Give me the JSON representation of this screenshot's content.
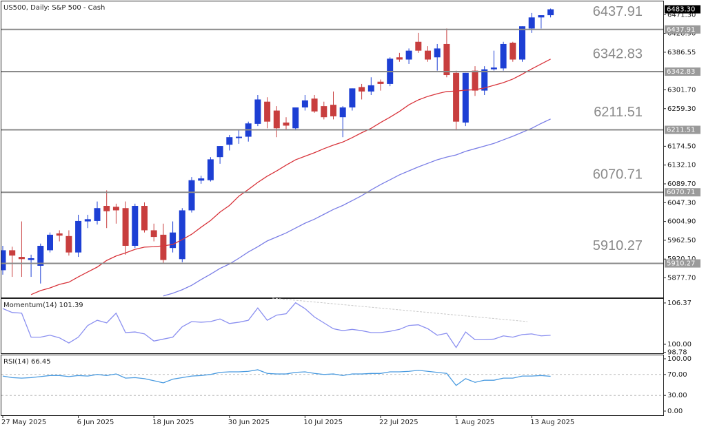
{
  "chart_data": [
    {
      "type": "candlestick",
      "title": "US500, Daily:  S&P 500 - Cash",
      "categories": [
        "27 May 2025",
        null,
        null,
        null,
        null,
        null,
        null,
        null,
        "6 Jun 2025",
        null,
        null,
        null,
        null,
        null,
        null,
        null,
        "18 Jun 2025",
        null,
        null,
        null,
        null,
        null,
        null,
        null,
        "30 Jun 2025",
        null,
        null,
        null,
        null,
        null,
        null,
        null,
        "10 Jul 2025",
        null,
        null,
        null,
        null,
        null,
        null,
        null,
        "22 Jul 2025",
        null,
        null,
        null,
        null,
        null,
        null,
        null,
        "1 Aug 2025",
        null,
        null,
        null,
        null,
        null,
        null,
        null,
        "13 Aug 2025",
        null,
        null
      ],
      "open": [
        5895,
        5940,
        5925,
        5918,
        5905,
        5940,
        5978,
        5972,
        5935,
        6005,
        6006,
        6040,
        6038,
        6035,
        5950,
        6040,
        5985,
        5975,
        5945,
        5920,
        6030,
        6097,
        6098,
        6150,
        6178,
        6193,
        6196,
        6225,
        6275,
        6255,
        6228,
        6215,
        6262,
        6282,
        6265,
        6268,
        6240,
        6262,
        6308,
        6298,
        6320,
        6315,
        6375,
        6370,
        6410,
        6390,
        6375,
        6405,
        6340,
        6228,
        6345,
        6300,
        6348,
        6350,
        6408,
        6370,
        6440,
        6465,
        6470
      ],
      "high": [
        5950,
        5948,
        6005,
        5930,
        5955,
        5980,
        5985,
        5985,
        6020,
        6020,
        6050,
        6075,
        6045,
        6050,
        6045,
        6048,
        6000,
        6000,
        6005,
        6035,
        6105,
        6108,
        6150,
        6175,
        6200,
        6210,
        6230,
        6290,
        6285,
        6265,
        6240,
        6260,
        6290,
        6290,
        6275,
        6298,
        6265,
        6305,
        6315,
        6330,
        6325,
        6375,
        6385,
        6395,
        6430,
        6400,
        6405,
        6440,
        6345,
        6340,
        6355,
        6355,
        6390,
        6410,
        6410,
        6445,
        6475,
        6470,
        6485
      ],
      "low": [
        5885,
        5880,
        5880,
        5880,
        5865,
        5935,
        5960,
        5928,
        5925,
        5990,
        5998,
        5990,
        6000,
        5930,
        5945,
        5980,
        5960,
        5910,
        5935,
        5913,
        6025,
        6090,
        6095,
        6135,
        6165,
        6180,
        6185,
        6220,
        6215,
        6195,
        6210,
        6210,
        6255,
        6250,
        6235,
        6235,
        6195,
        6255,
        6280,
        6290,
        6300,
        6310,
        6365,
        6360,
        6385,
        6365,
        6345,
        6330,
        6210,
        6220,
        6288,
        6290,
        6345,
        6345,
        6365,
        6365,
        6430,
        6440,
        6465
      ],
      "close": [
        5940,
        5928,
        5920,
        5922,
        5950,
        5975,
        5973,
        5935,
        6006,
        6010,
        6035,
        6028,
        6030,
        5950,
        6040,
        5985,
        5970,
        5918,
        5980,
        6030,
        6098,
        6102,
        6145,
        6175,
        6195,
        6196,
        6226,
        6280,
        6230,
        6215,
        6221,
        6262,
        6278,
        6253,
        6240,
        6242,
        6262,
        6305,
        6298,
        6312,
        6315,
        6372,
        6370,
        6390,
        6390,
        6370,
        6395,
        6335,
        6230,
        6340,
        6300,
        6348,
        6352,
        6405,
        6370,
        6445,
        6465,
        6470,
        6483.3
      ],
      "up_color": "#1d3fd4",
      "down_color": "#c83e3e",
      "overlays": [
        {
          "color": "#d8333a",
          "values": [
            null,
            null,
            null,
            5840,
            5849,
            5855,
            5863,
            5868,
            5880,
            5891,
            5902,
            5917,
            5927,
            5934,
            5942,
            5947,
            5948,
            5950,
            5953,
            5964,
            5976,
            5992,
            6007,
            6026,
            6041,
            6062,
            6077,
            6093,
            6107,
            6119,
            6132,
            6144,
            6152,
            6160,
            6169,
            6177,
            6184,
            6194,
            6205,
            6215,
            6228,
            6240,
            6253,
            6268,
            6279,
            6287,
            6293,
            6298,
            6299,
            6301,
            6302,
            6306,
            6312,
            6318,
            6326,
            6337,
            6349,
            6360,
            6371
          ]
        },
        {
          "color": "#7a7ee6",
          "values": [
            null,
            null,
            null,
            null,
            null,
            null,
            null,
            null,
            null,
            null,
            null,
            null,
            null,
            null,
            null,
            null,
            null,
            5837,
            5843,
            5851,
            5861,
            5874,
            5886,
            5899,
            5909,
            5922,
            5936,
            5948,
            5961,
            5970,
            5979,
            5990,
            6001,
            6010,
            6021,
            6032,
            6041,
            6052,
            6063,
            6076,
            6088,
            6099,
            6110,
            6119,
            6128,
            6136,
            6144,
            6150,
            6155,
            6163,
            6169,
            6175,
            6181,
            6189,
            6197,
            6206,
            6215,
            6226,
            6236
          ]
        }
      ],
      "levels": [
        {
          "value": 6437.91,
          "label": "6437.91"
        },
        {
          "value": 6342.83,
          "label": "6342.83"
        },
        {
          "value": 6211.51,
          "label": "6211.51"
        },
        {
          "value": 6070.71,
          "label": "6070.71"
        },
        {
          "value": 5910.27,
          "label": "5910.27"
        }
      ],
      "last_price": {
        "value": 6483.3,
        "label": "6483.30"
      },
      "ylim": [
        5833.5,
        6501.2
      ],
      "yticks": [
        {
          "value": 6471.3,
          "label": "6471.30"
        },
        {
          "value": 6428.9,
          "label": "6428.90"
        },
        6386.55,
        {
          "value": 6301.7,
          "label": "6301.70"
        },
        {
          "value": 6259.3,
          "label": "6259.30"
        },
        {
          "value": 6174.5,
          "label": "6174.50"
        },
        {
          "value": 6132.1,
          "label": "6132.10"
        },
        {
          "value": 6089.7,
          "label": "6089.70"
        },
        {
          "value": 6047.3,
          "label": "6047.30"
        },
        {
          "value": 6004.9,
          "label": "6004.90"
        },
        {
          "value": 5962.5,
          "label": "5962.50"
        },
        {
          "value": 5920.1,
          "label": "5920.10"
        },
        {
          "value": 5877.7,
          "label": "5877.70"
        }
      ]
    },
    {
      "type": "line",
      "title": "Momentum(14) 101.39",
      "color": "#8a8ff0",
      "values": [
        105.5,
        104.9,
        104.8,
        101.1,
        101.1,
        101.4,
        101.0,
        100.2,
        101.1,
        102.9,
        103.7,
        103.3,
        104.8,
        101.8,
        101.9,
        101.6,
        100.5,
        100.8,
        101.1,
        102.7,
        103.5,
        103.4,
        103.5,
        103.9,
        103.2,
        103.4,
        103.7,
        105.6,
        103.7,
        104.5,
        104.7,
        106.4,
        105.5,
        104.2,
        103.3,
        102.4,
        102.1,
        102.3,
        102.1,
        101.8,
        101.8,
        102.0,
        102.3,
        102.9,
        103.0,
        102.4,
        101.4,
        101.7,
        99.5,
        101.9,
        100.7,
        100.7,
        100.8,
        101.3,
        101.1,
        101.5,
        101.6,
        101.3,
        101.39
      ],
      "ylim": [
        98.62,
        107.0
      ],
      "yticks": [
        106.37,
        {
          "value": 100,
          "label": "100.00"
        },
        98.78
      ]
    },
    {
      "type": "line",
      "title": "RSI(14) 66.45",
      "color": "#4a9be0",
      "values": [
        67,
        64,
        63,
        64,
        66,
        68,
        68,
        66,
        68,
        67,
        70,
        68,
        71,
        63,
        64,
        62,
        58,
        54,
        61,
        64,
        67,
        68,
        70,
        74,
        75,
        75,
        76,
        79,
        72,
        71,
        71,
        74,
        75,
        72,
        70,
        71,
        68,
        71,
        71,
        72,
        72,
        75,
        75,
        76,
        78,
        76,
        74,
        72,
        49,
        62,
        55,
        59,
        59,
        63,
        63,
        67,
        67,
        68,
        66.45
      ],
      "ylim": [
        -7.9,
        106.6
      ],
      "yticks": [
        {
          "value": 100,
          "label": "100.00"
        },
        {
          "value": 70,
          "label": "70.00"
        },
        {
          "value": 30,
          "label": "30.00"
        },
        {
          "value": 0,
          "label": "0.00"
        }
      ]
    }
  ]
}
